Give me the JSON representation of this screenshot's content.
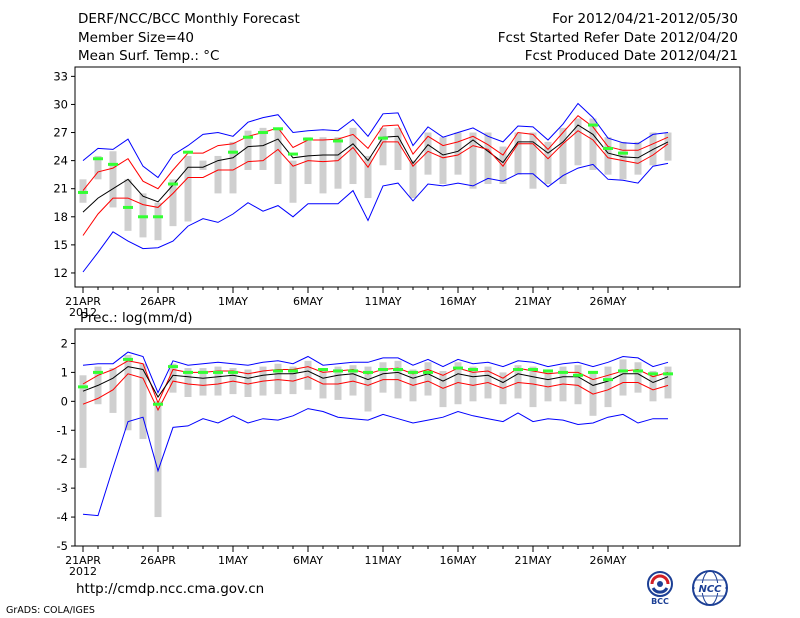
{
  "header": {
    "left1": "DERF/NCC/BCC Monthly Forecast",
    "left2": "Member Size=40",
    "left3": "Mean Surf. Temp.: °C",
    "right1": "For 2012/04/21-2012/05/30",
    "right2": "Fcst Started Refer Date 2012/04/20",
    "right3": "Fcst Produced Date 2012/04/21"
  },
  "footer": {
    "url": "http://cmdp.ncc.cma.gov.cn",
    "credit": "GrADS: COLA/IGES",
    "logo_bcc": "BCC",
    "logo_ncc": "NCC"
  },
  "colors": {
    "envelope": "#0000ff",
    "spread": "#ff0000",
    "mean": "#000000",
    "bar": "#cfcfcf",
    "marker": "#33ff33"
  },
  "chart_data": [
    {
      "type": "line",
      "title": "Mean Surf. Temp.: °C",
      "ylabel": "°C",
      "ylim": [
        10.5,
        34
      ],
      "yticks": [
        12,
        15,
        18,
        21,
        24,
        27,
        30,
        33
      ],
      "xticks": [
        {
          "day": 0,
          "label": "21APR",
          "sub": "2012"
        },
        {
          "day": 5,
          "label": "26APR"
        },
        {
          "day": 10,
          "label": "1MAY"
        },
        {
          "day": 15,
          "label": "6MAY"
        },
        {
          "day": 20,
          "label": "11MAY"
        },
        {
          "day": 25,
          "label": "16MAY"
        },
        {
          "day": 30,
          "label": "21MAY"
        },
        {
          "day": 35,
          "label": "26MAY"
        }
      ],
      "days": [
        0,
        1,
        2,
        3,
        4,
        5,
        6,
        7,
        8,
        9,
        10,
        11,
        12,
        13,
        14,
        15,
        16,
        17,
        18,
        19,
        20,
        21,
        22,
        23,
        24,
        25,
        26,
        27,
        28,
        29,
        30,
        31,
        32,
        33,
        34,
        35,
        36,
        37,
        38,
        39
      ],
      "series": [
        {
          "name": "max",
          "role": "envelope",
          "values": [
            24.0,
            25.3,
            25.2,
            26.3,
            23.4,
            22.2,
            24.6,
            25.6,
            26.8,
            27.0,
            26.6,
            28.1,
            28.6,
            28.9,
            27.0,
            27.2,
            27.3,
            27.2,
            28.4,
            26.6,
            29.0,
            29.1,
            25.6,
            27.6,
            26.5,
            27.0,
            27.5,
            26.6,
            26.0,
            27.7,
            27.6,
            26.2,
            27.9,
            30.1,
            28.6,
            26.4,
            25.9,
            25.8,
            26.8,
            27.0
          ]
        },
        {
          "name": "upper",
          "role": "spread",
          "values": [
            20.8,
            22.8,
            23.2,
            24.2,
            21.8,
            21.0,
            23.0,
            24.8,
            24.8,
            25.6,
            25.8,
            26.6,
            27.0,
            27.5,
            25.4,
            26.2,
            26.2,
            26.3,
            26.8,
            25.3,
            27.7,
            27.8,
            24.7,
            26.6,
            25.6,
            26.0,
            26.6,
            25.7,
            24.6,
            27.0,
            26.8,
            25.2,
            27.0,
            28.8,
            27.6,
            25.5,
            25.1,
            25.1,
            25.8,
            26.5
          ]
        },
        {
          "name": "mean",
          "role": "mean",
          "values": [
            18.5,
            20.0,
            21.0,
            22.0,
            20.2,
            19.6,
            21.4,
            23.3,
            23.3,
            24.0,
            24.3,
            25.5,
            25.6,
            26.3,
            24.3,
            24.5,
            24.6,
            24.6,
            25.8,
            24.0,
            26.5,
            26.6,
            23.7,
            25.7,
            24.6,
            25.0,
            26.2,
            25.0,
            23.8,
            26.0,
            26.0,
            24.8,
            26.0,
            27.8,
            26.8,
            24.8,
            24.4,
            24.3,
            25.2,
            26.0
          ]
        },
        {
          "name": "lower",
          "role": "spread",
          "values": [
            16.0,
            18.3,
            20.0,
            20.0,
            19.3,
            19.0,
            20.5,
            22.2,
            22.2,
            23.0,
            23.0,
            23.9,
            24.0,
            25.2,
            23.4,
            24.0,
            23.9,
            24.0,
            25.4,
            23.3,
            26.0,
            26.0,
            23.4,
            25.0,
            24.3,
            24.6,
            25.6,
            25.2,
            23.4,
            25.8,
            25.8,
            24.2,
            25.8,
            27.2,
            26.2,
            24.3,
            24.0,
            23.7,
            24.6,
            25.8
          ]
        },
        {
          "name": "min",
          "role": "envelope",
          "values": [
            12.1,
            14.2,
            16.4,
            15.4,
            14.6,
            14.7,
            15.4,
            17.0,
            17.8,
            17.4,
            18.3,
            19.5,
            18.6,
            19.2,
            18.0,
            19.4,
            19.4,
            19.4,
            20.8,
            17.6,
            21.3,
            21.6,
            19.7,
            21.5,
            21.3,
            21.6,
            21.3,
            22.1,
            21.8,
            22.6,
            22.6,
            21.2,
            22.4,
            23.2,
            23.6,
            22.0,
            21.9,
            21.6,
            23.4,
            23.7
          ]
        },
        {
          "name": "box_high",
          "role": "bar",
          "values": [
            22.0,
            24.5,
            25.0,
            22.0,
            20.5,
            19.5,
            22.0,
            24.5,
            24.0,
            24.5,
            26.0,
            27.2,
            27.5,
            27.5,
            24.0,
            26.5,
            26.5,
            26.5,
            27.5,
            24.5,
            27.5,
            27.5,
            24.0,
            27.0,
            26.5,
            27.0,
            27.0,
            27.0,
            25.5,
            27.0,
            27.0,
            26.0,
            27.5,
            28.5,
            28.5,
            26.5,
            26.0,
            26.0,
            27.0,
            27.0
          ]
        },
        {
          "name": "box_low",
          "role": "bar",
          "values": [
            19.5,
            22.0,
            19.0,
            16.5,
            15.8,
            15.5,
            17.0,
            17.5,
            23.0,
            20.5,
            20.5,
            23.0,
            23.0,
            21.5,
            19.5,
            21.5,
            20.5,
            21.0,
            21.5,
            20.0,
            23.5,
            23.0,
            20.0,
            22.5,
            21.5,
            22.5,
            21.0,
            21.5,
            21.5,
            22.5,
            21.0,
            21.5,
            21.5,
            23.5,
            23.0,
            22.5,
            22.0,
            22.5,
            23.5,
            24.0
          ]
        },
        {
          "name": "observed",
          "role": "marker",
          "values": [
            20.6,
            24.2,
            23.6,
            19.0,
            18.0,
            18.0,
            21.5,
            24.9,
            null,
            null,
            24.9,
            26.5,
            27.0,
            27.4,
            24.7,
            26.3,
            null,
            26.1,
            null,
            null,
            26.4,
            null,
            null,
            null,
            null,
            null,
            null,
            null,
            null,
            null,
            null,
            null,
            null,
            null,
            27.8,
            25.3,
            24.8,
            null,
            null,
            null
          ]
        }
      ]
    },
    {
      "type": "line",
      "title": "Prec.: log(mm/d)",
      "ylabel": "log(mm/d)",
      "ylim": [
        -5,
        2.5
      ],
      "yticks": [
        -5,
        -4,
        -3,
        -2,
        -1,
        0,
        1,
        2
      ],
      "xticks": [
        {
          "day": 0,
          "label": "21APR",
          "sub": "2012"
        },
        {
          "day": 5,
          "label": "26APR"
        },
        {
          "day": 10,
          "label": "1MAY"
        },
        {
          "day": 15,
          "label": "6MAY"
        },
        {
          "day": 20,
          "label": "11MAY"
        },
        {
          "day": 25,
          "label": "16MAY"
        },
        {
          "day": 30,
          "label": "21MAY"
        },
        {
          "day": 35,
          "label": "26MAY"
        }
      ],
      "days": [
        0,
        1,
        2,
        3,
        4,
        5,
        6,
        7,
        8,
        9,
        10,
        11,
        12,
        13,
        14,
        15,
        16,
        17,
        18,
        19,
        20,
        21,
        22,
        23,
        24,
        25,
        26,
        27,
        28,
        29,
        30,
        31,
        32,
        33,
        34,
        35,
        36,
        37,
        38,
        39
      ],
      "series": [
        {
          "name": "max",
          "role": "envelope",
          "values": [
            1.25,
            1.3,
            1.3,
            1.7,
            1.55,
            0.3,
            1.4,
            1.25,
            1.3,
            1.35,
            1.3,
            1.25,
            1.35,
            1.4,
            1.3,
            1.55,
            1.25,
            1.3,
            1.35,
            1.35,
            1.5,
            1.5,
            1.25,
            1.45,
            1.2,
            1.45,
            1.3,
            1.35,
            1.2,
            1.4,
            1.35,
            1.2,
            1.3,
            1.35,
            1.2,
            1.35,
            1.55,
            1.5,
            1.2,
            1.35
          ]
        },
        {
          "name": "upper",
          "role": "spread",
          "values": [
            0.6,
            0.9,
            1.1,
            1.4,
            1.3,
            -0.05,
            1.1,
            1.0,
            1.0,
            1.05,
            1.05,
            0.95,
            1.05,
            1.1,
            1.1,
            1.2,
            1.0,
            1.05,
            1.1,
            0.95,
            1.1,
            1.15,
            0.95,
            1.1,
            0.9,
            1.15,
            1.0,
            1.05,
            0.8,
            1.15,
            1.05,
            0.95,
            1.0,
            1.0,
            0.75,
            0.9,
            1.05,
            1.1,
            0.85,
            1.0
          ]
        },
        {
          "name": "mean",
          "role": "mean",
          "values": [
            0.35,
            0.55,
            0.8,
            1.2,
            1.1,
            0.15,
            0.9,
            0.85,
            0.8,
            0.85,
            0.9,
            0.8,
            0.9,
            0.95,
            0.95,
            1.05,
            0.8,
            0.9,
            0.95,
            0.75,
            0.95,
            1.0,
            0.8,
            0.95,
            0.7,
            0.95,
            0.85,
            0.9,
            0.65,
            0.95,
            0.85,
            0.75,
            0.85,
            0.85,
            0.55,
            0.7,
            0.95,
            0.95,
            0.65,
            0.85
          ]
        },
        {
          "name": "lower",
          "role": "spread",
          "values": [
            -0.1,
            0.1,
            0.4,
            0.95,
            0.8,
            -0.3,
            0.7,
            0.6,
            0.55,
            0.6,
            0.7,
            0.6,
            0.7,
            0.75,
            0.7,
            0.85,
            0.6,
            0.6,
            0.7,
            0.55,
            0.75,
            0.75,
            0.55,
            0.7,
            0.45,
            0.65,
            0.55,
            0.65,
            0.45,
            0.65,
            0.6,
            0.5,
            0.6,
            0.55,
            0.25,
            0.4,
            0.65,
            0.65,
            0.4,
            0.55
          ]
        },
        {
          "name": "min",
          "role": "envelope",
          "values": [
            -3.9,
            -3.95,
            -2.3,
            -0.7,
            -0.55,
            -2.4,
            -0.9,
            -0.85,
            -0.6,
            -0.75,
            -0.5,
            -0.75,
            -0.6,
            -0.65,
            -0.5,
            -0.25,
            -0.35,
            -0.55,
            -0.6,
            -0.65,
            -0.45,
            -0.6,
            -0.75,
            -0.65,
            -0.55,
            -0.35,
            -0.5,
            -0.6,
            -0.7,
            -0.4,
            -0.7,
            -0.6,
            -0.65,
            -0.8,
            -0.75,
            -0.55,
            -0.45,
            -0.75,
            -0.6,
            -0.6
          ]
        },
        {
          "name": "box_high",
          "role": "bar",
          "values": [
            0.9,
            1.2,
            1.15,
            1.6,
            1.3,
            0.0,
            1.3,
            1.15,
            1.15,
            1.2,
            1.15,
            1.1,
            1.2,
            1.3,
            1.2,
            1.4,
            1.1,
            1.2,
            1.25,
            1.2,
            1.35,
            1.4,
            1.1,
            1.35,
            1.05,
            1.35,
            1.2,
            1.2,
            1.0,
            1.25,
            1.2,
            1.1,
            1.2,
            1.25,
            1.05,
            1.2,
            1.45,
            1.35,
            1.05,
            1.2
          ]
        },
        {
          "name": "box_low",
          "role": "bar",
          "values": [
            -2.3,
            -0.1,
            -0.4,
            -1.0,
            -1.3,
            -4.0,
            0.3,
            0.15,
            0.2,
            0.2,
            0.25,
            0.15,
            0.2,
            0.25,
            0.25,
            0.4,
            0.1,
            0.05,
            0.2,
            -0.35,
            0.3,
            0.1,
            0.0,
            0.2,
            -0.2,
            -0.1,
            0.0,
            0.1,
            -0.1,
            0.1,
            -0.2,
            0.0,
            0.0,
            -0.1,
            -0.5,
            -0.2,
            0.2,
            0.3,
            0.0,
            0.1
          ]
        },
        {
          "name": "observed",
          "role": "marker",
          "values": [
            0.5,
            1.0,
            null,
            1.45,
            null,
            -0.1,
            1.2,
            1.0,
            1.0,
            1.0,
            1.0,
            null,
            null,
            1.05,
            1.05,
            null,
            1.1,
            1.05,
            1.05,
            1.0,
            1.1,
            1.1,
            1.0,
            1.0,
            null,
            1.15,
            1.1,
            null,
            null,
            1.1,
            1.1,
            1.05,
            1.0,
            0.9,
            1.0,
            0.75,
            1.05,
            1.05,
            0.95,
            0.95
          ]
        }
      ]
    }
  ]
}
